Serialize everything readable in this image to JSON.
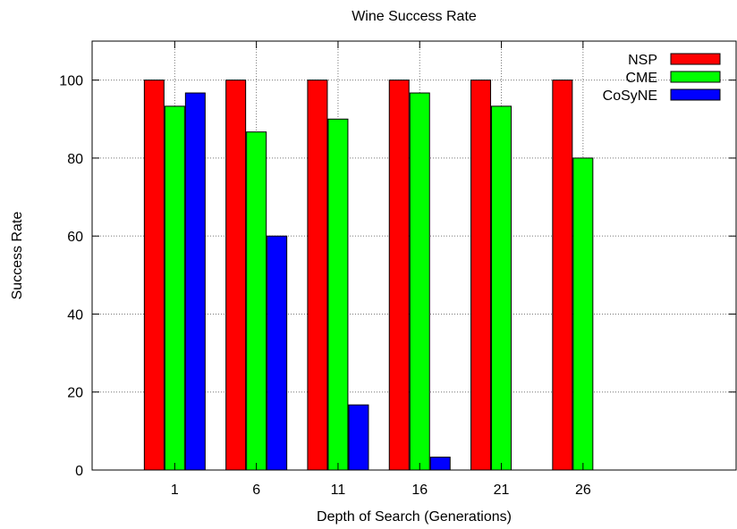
{
  "chart_data": {
    "type": "bar",
    "title": "Wine Success Rate",
    "xlabel": "Depth of Search (Generations)",
    "ylabel": "Success Rate",
    "categories": [
      "1",
      "6",
      "11",
      "16",
      "21",
      "26"
    ],
    "ylim": [
      0,
      110
    ],
    "yticks": [
      0,
      20,
      40,
      60,
      80,
      100
    ],
    "grid": true,
    "legend_position": "top-right",
    "series": [
      {
        "name": "NSP",
        "color": "#ff0000",
        "values": [
          100,
          100,
          100,
          100,
          100,
          100
        ]
      },
      {
        "name": "CME",
        "color": "#00ff00",
        "values": [
          93.3,
          86.7,
          90,
          96.7,
          93.3,
          80
        ]
      },
      {
        "name": "CoSyNE",
        "color": "#0000ff",
        "values": [
          96.7,
          60,
          16.7,
          3.3,
          0,
          0
        ]
      }
    ]
  }
}
